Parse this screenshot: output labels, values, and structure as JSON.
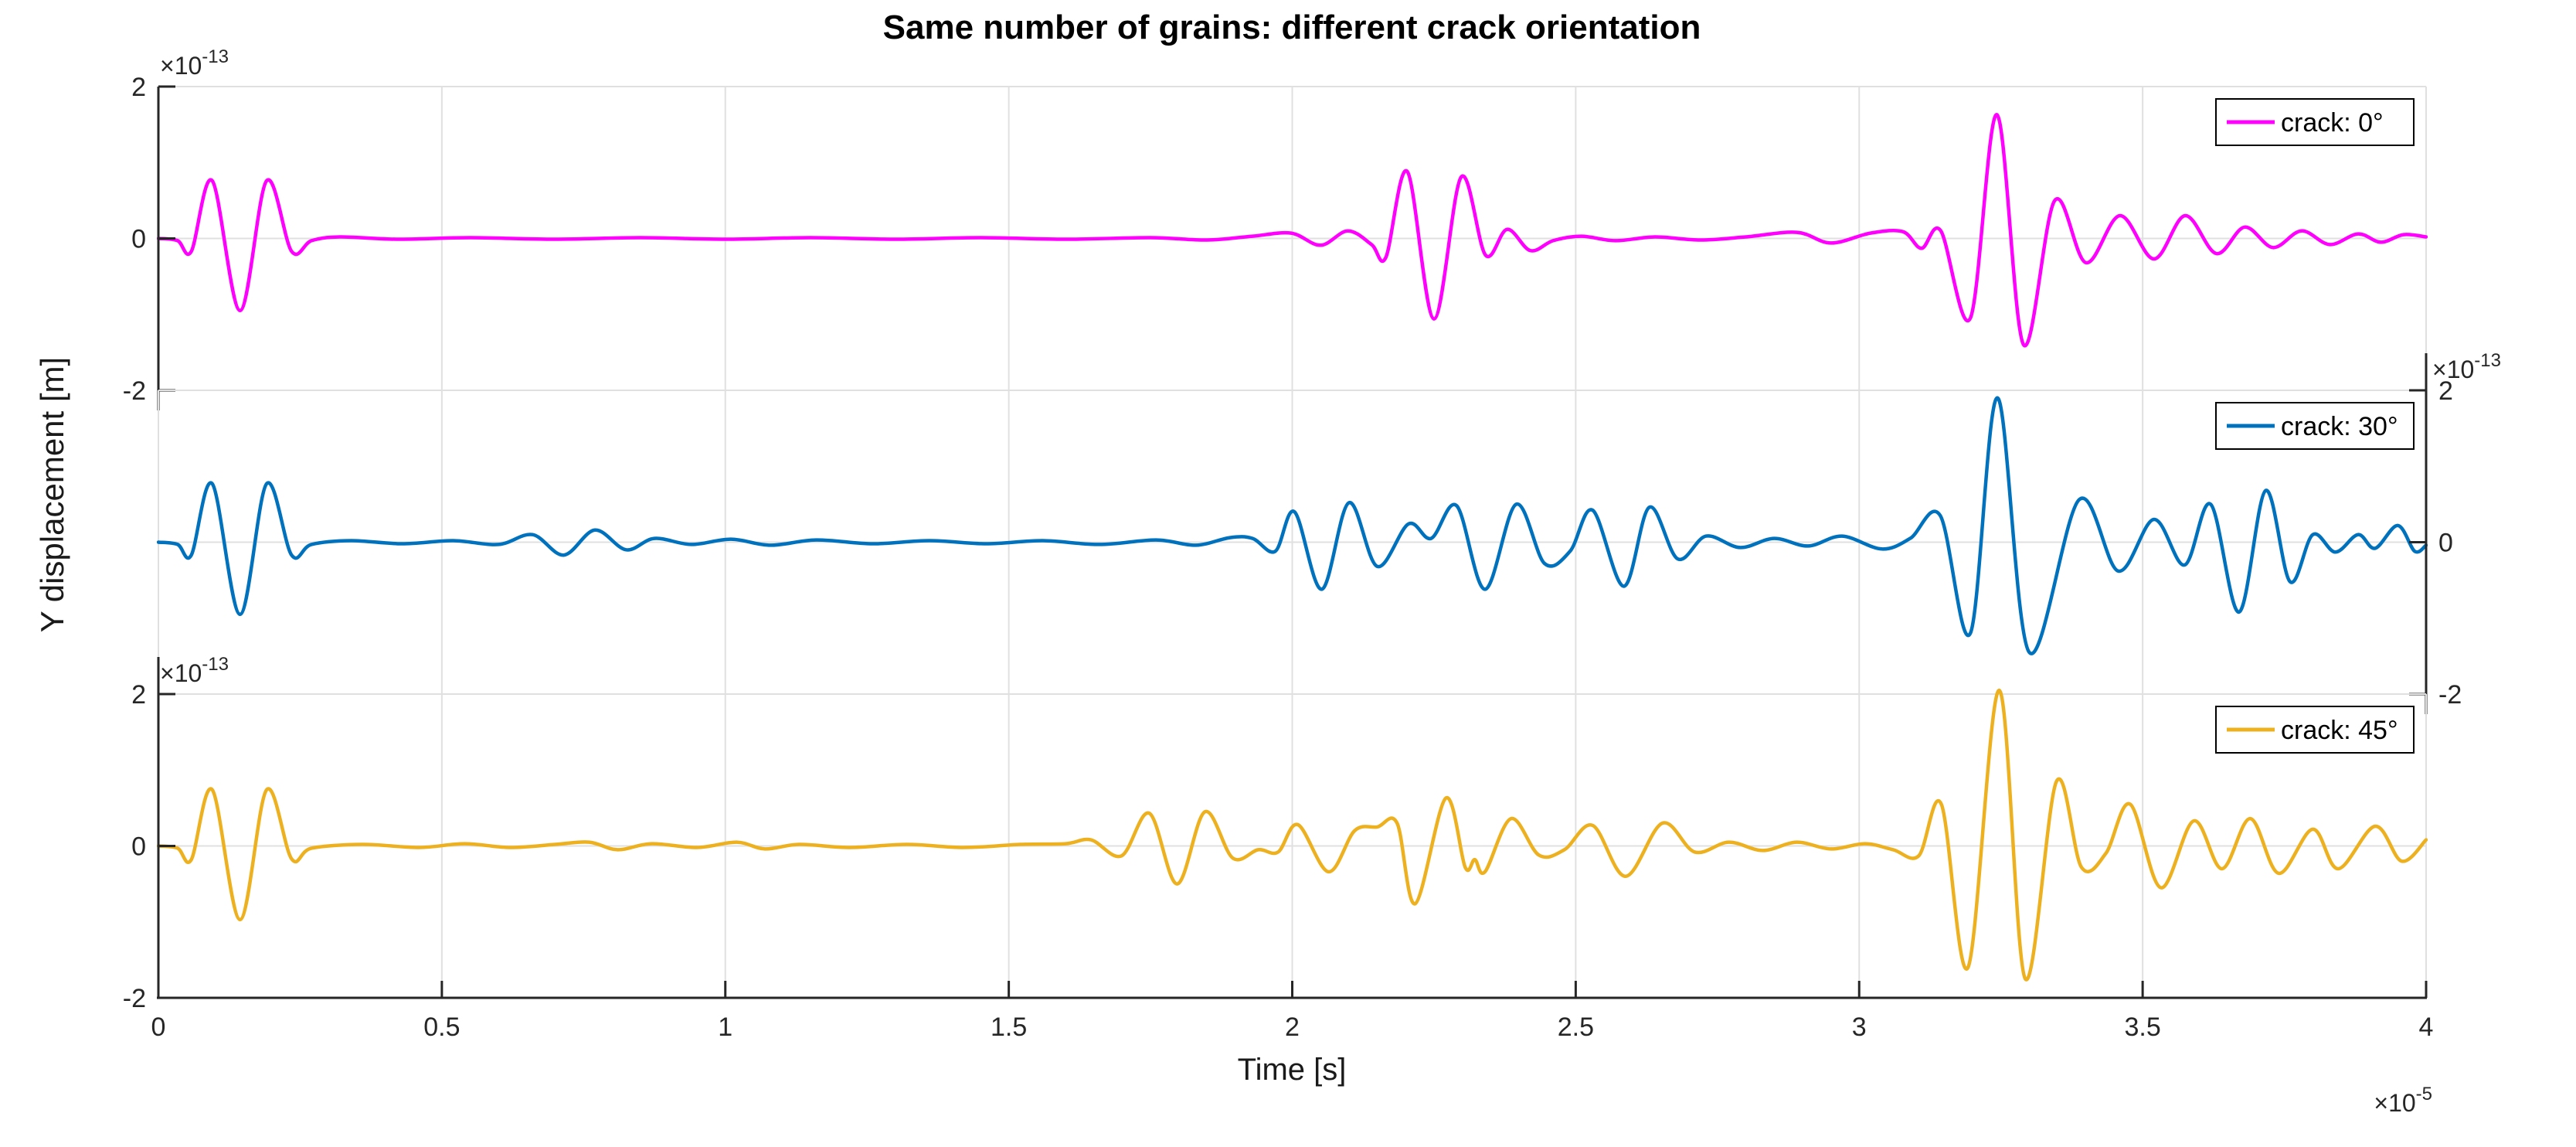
{
  "figure": {
    "title": "Same number of grains: different crack orientation",
    "x_label": "Time [s]",
    "y_label": "Y displacement [m]",
    "x_axis_exponent": {
      "prefix": "×10",
      "sup": "-5"
    },
    "y_axis_exponent": {
      "prefix": "×10",
      "sup": "-13"
    },
    "x_tick_labels": [
      "0",
      "0.5",
      "1",
      "1.5",
      "2",
      "2.5",
      "3",
      "3.5",
      "4"
    ],
    "y_tick_labels": [
      "2",
      "0",
      "-2"
    ],
    "colors": {
      "background": "#FFFFFF",
      "grid": "#E0E0E0",
      "axis": "#262626",
      "title": "#000000",
      "legend_border": "#000000",
      "crack_0": "#FF00FF",
      "crack_30": "#0072BD",
      "crack_45": "#EDB120"
    }
  },
  "chart_data": {
    "type": "line",
    "title": "Same number of grains: different crack orientation",
    "xlabel": "Time [s]",
    "ylabel": "Y displacement [m]",
    "x_scale_exponent": -5,
    "y_scale_exponent": -13,
    "xlim": [
      0,
      4
    ],
    "ylim": [
      -2,
      2
    ],
    "x_ticks": [
      0,
      0.5,
      1,
      1.5,
      2,
      2.5,
      3,
      3.5,
      4
    ],
    "y_ticks": [
      2,
      0,
      -2
    ],
    "grid": true,
    "legend_position": "boxed top-right inside each subplot",
    "layout": "3 stacked subplots sharing x axis",
    "series": [
      {
        "name": "crack: 0°",
        "color": "#FF00FF",
        "y_axis_side": "left",
        "points": [
          [
            0,
            0
          ],
          [
            0.034,
            -0.03
          ],
          [
            0.058,
            -0.17
          ],
          [
            0.095,
            0.76
          ],
          [
            0.144,
            -0.95
          ],
          [
            0.191,
            0.76
          ],
          [
            0.235,
            -0.17
          ],
          [
            0.27,
            -0.03
          ],
          [
            0.32,
            0.02
          ],
          [
            0.42,
            -0.01
          ],
          [
            0.55,
            0.01
          ],
          [
            0.7,
            -0.01
          ],
          [
            0.85,
            0.01
          ],
          [
            1.0,
            -0.01
          ],
          [
            1.15,
            0.01
          ],
          [
            1.3,
            -0.01
          ],
          [
            1.45,
            0.01
          ],
          [
            1.6,
            -0.01
          ],
          [
            1.75,
            0.01
          ],
          [
            1.85,
            -0.02
          ],
          [
            1.93,
            0.03
          ],
          [
            1.998,
            0.07
          ],
          [
            2.05,
            -0.09
          ],
          [
            2.098,
            0.1
          ],
          [
            2.14,
            -0.08
          ],
          [
            2.165,
            -0.25
          ],
          [
            2.203,
            0.88
          ],
          [
            2.25,
            -1.06
          ],
          [
            2.298,
            0.81
          ],
          [
            2.341,
            -0.22
          ],
          [
            2.379,
            0.12
          ],
          [
            2.42,
            -0.16
          ],
          [
            2.46,
            -0.03
          ],
          [
            2.51,
            0.03
          ],
          [
            2.57,
            -0.03
          ],
          [
            2.64,
            0.02
          ],
          [
            2.72,
            -0.02
          ],
          [
            2.8,
            0.02
          ],
          [
            2.89,
            0.08
          ],
          [
            2.95,
            -0.06
          ],
          [
            3.02,
            0.07
          ],
          [
            3.077,
            0.09
          ],
          [
            3.11,
            -0.13
          ],
          [
            3.144,
            0.1
          ],
          [
            3.196,
            -1.05
          ],
          [
            3.243,
            1.63
          ],
          [
            3.29,
            -1.4
          ],
          [
            3.345,
            0.5
          ],
          [
            3.4,
            -0.32
          ],
          [
            3.46,
            0.3
          ],
          [
            3.52,
            -0.27
          ],
          [
            3.575,
            0.3
          ],
          [
            3.63,
            -0.2
          ],
          [
            3.68,
            0.15
          ],
          [
            3.73,
            -0.12
          ],
          [
            3.78,
            0.1
          ],
          [
            3.83,
            -0.08
          ],
          [
            3.88,
            0.06
          ],
          [
            3.92,
            -0.05
          ],
          [
            3.96,
            0.05
          ],
          [
            4.0,
            0.02
          ]
        ]
      },
      {
        "name": "crack: 30°",
        "color": "#0072BD",
        "y_axis_side": "right",
        "points": [
          [
            0,
            0
          ],
          [
            0.034,
            -0.03
          ],
          [
            0.058,
            -0.17
          ],
          [
            0.095,
            0.77
          ],
          [
            0.144,
            -0.95
          ],
          [
            0.191,
            0.77
          ],
          [
            0.235,
            -0.17
          ],
          [
            0.27,
            -0.03
          ],
          [
            0.34,
            0.02
          ],
          [
            0.43,
            -0.02
          ],
          [
            0.52,
            0.02
          ],
          [
            0.6,
            -0.03
          ],
          [
            0.66,
            0.1
          ],
          [
            0.715,
            -0.17
          ],
          [
            0.77,
            0.16
          ],
          [
            0.825,
            -0.1
          ],
          [
            0.875,
            0.05
          ],
          [
            0.94,
            -0.03
          ],
          [
            1.01,
            0.04
          ],
          [
            1.08,
            -0.04
          ],
          [
            1.16,
            0.03
          ],
          [
            1.26,
            -0.02
          ],
          [
            1.36,
            0.02
          ],
          [
            1.46,
            -0.02
          ],
          [
            1.56,
            0.02
          ],
          [
            1.66,
            -0.03
          ],
          [
            1.76,
            0.03
          ],
          [
            1.83,
            -0.04
          ],
          [
            1.89,
            0.06
          ],
          [
            1.93,
            0.05
          ],
          [
            1.97,
            -0.12
          ],
          [
            2.004,
            0.4
          ],
          [
            2.052,
            -0.62
          ],
          [
            2.1,
            0.52
          ],
          [
            2.15,
            -0.32
          ],
          [
            2.205,
            0.24
          ],
          [
            2.245,
            0.05
          ],
          [
            2.29,
            0.48
          ],
          [
            2.34,
            -0.62
          ],
          [
            2.395,
            0.5
          ],
          [
            2.445,
            -0.28
          ],
          [
            2.49,
            -0.12
          ],
          [
            2.53,
            0.42
          ],
          [
            2.585,
            -0.58
          ],
          [
            2.63,
            0.46
          ],
          [
            2.68,
            -0.22
          ],
          [
            2.73,
            0.08
          ],
          [
            2.79,
            -0.07
          ],
          [
            2.85,
            0.05
          ],
          [
            2.91,
            -0.05
          ],
          [
            2.97,
            0.08
          ],
          [
            3.04,
            -0.09
          ],
          [
            3.09,
            0.05
          ],
          [
            3.143,
            0.35
          ],
          [
            3.196,
            -1.2
          ],
          [
            3.244,
            1.9
          ],
          [
            3.3,
            -1.45
          ],
          [
            3.388,
            0.56
          ],
          [
            3.457,
            -0.38
          ],
          [
            3.52,
            0.3
          ],
          [
            3.574,
            -0.3
          ],
          [
            3.62,
            0.5
          ],
          [
            3.67,
            -0.92
          ],
          [
            3.717,
            0.68
          ],
          [
            3.76,
            -0.52
          ],
          [
            3.8,
            0.1
          ],
          [
            3.84,
            -0.13
          ],
          [
            3.88,
            0.1
          ],
          [
            3.91,
            -0.08
          ],
          [
            3.95,
            0.22
          ],
          [
            3.98,
            -0.12
          ],
          [
            4.0,
            -0.04
          ]
        ]
      },
      {
        "name": "crack: 45°",
        "color": "#EDB120",
        "y_axis_side": "left",
        "points": [
          [
            0,
            0
          ],
          [
            0.034,
            -0.03
          ],
          [
            0.058,
            -0.18
          ],
          [
            0.095,
            0.74
          ],
          [
            0.144,
            -0.97
          ],
          [
            0.191,
            0.74
          ],
          [
            0.235,
            -0.17
          ],
          [
            0.27,
            -0.03
          ],
          [
            0.36,
            0.02
          ],
          [
            0.46,
            -0.02
          ],
          [
            0.54,
            0.03
          ],
          [
            0.62,
            -0.02
          ],
          [
            0.7,
            0.02
          ],
          [
            0.76,
            0.05
          ],
          [
            0.81,
            -0.05
          ],
          [
            0.87,
            0.03
          ],
          [
            0.95,
            -0.02
          ],
          [
            1.02,
            0.05
          ],
          [
            1.07,
            -0.04
          ],
          [
            1.13,
            0.02
          ],
          [
            1.22,
            -0.02
          ],
          [
            1.32,
            0.02
          ],
          [
            1.42,
            -0.02
          ],
          [
            1.52,
            0.02
          ],
          [
            1.6,
            0.03
          ],
          [
            1.645,
            0.08
          ],
          [
            1.699,
            -0.13
          ],
          [
            1.748,
            0.43
          ],
          [
            1.797,
            -0.5
          ],
          [
            1.846,
            0.45
          ],
          [
            1.895,
            -0.16
          ],
          [
            1.94,
            -0.05
          ],
          [
            1.975,
            -0.08
          ],
          [
            2.01,
            0.28
          ],
          [
            2.064,
            -0.34
          ],
          [
            2.11,
            0.2
          ],
          [
            2.15,
            0.25
          ],
          [
            2.185,
            0.3
          ],
          [
            2.217,
            -0.76
          ],
          [
            2.271,
            0.63
          ],
          [
            2.305,
            -0.28
          ],
          [
            2.322,
            -0.18
          ],
          [
            2.34,
            -0.34
          ],
          [
            2.386,
            0.36
          ],
          [
            2.435,
            -0.12
          ],
          [
            2.48,
            -0.05
          ],
          [
            2.53,
            0.27
          ],
          [
            2.588,
            -0.4
          ],
          [
            2.653,
            0.3
          ],
          [
            2.71,
            -0.08
          ],
          [
            2.77,
            0.05
          ],
          [
            2.83,
            -0.06
          ],
          [
            2.89,
            0.05
          ],
          [
            2.95,
            -0.04
          ],
          [
            3.01,
            0.03
          ],
          [
            3.06,
            -0.05
          ],
          [
            3.105,
            -0.13
          ],
          [
            3.145,
            0.55
          ],
          [
            3.192,
            -1.6
          ],
          [
            3.247,
            2.05
          ],
          [
            3.293,
            -1.75
          ],
          [
            3.348,
            0.85
          ],
          [
            3.392,
            -0.28
          ],
          [
            3.435,
            -0.1
          ],
          [
            3.478,
            0.55
          ],
          [
            3.532,
            -0.55
          ],
          [
            3.59,
            0.33
          ],
          [
            3.64,
            -0.3
          ],
          [
            3.69,
            0.36
          ],
          [
            3.74,
            -0.36
          ],
          [
            3.8,
            0.22
          ],
          [
            3.845,
            -0.3
          ],
          [
            3.91,
            0.26
          ],
          [
            3.957,
            -0.2
          ],
          [
            4.0,
            0.08
          ]
        ]
      }
    ]
  }
}
